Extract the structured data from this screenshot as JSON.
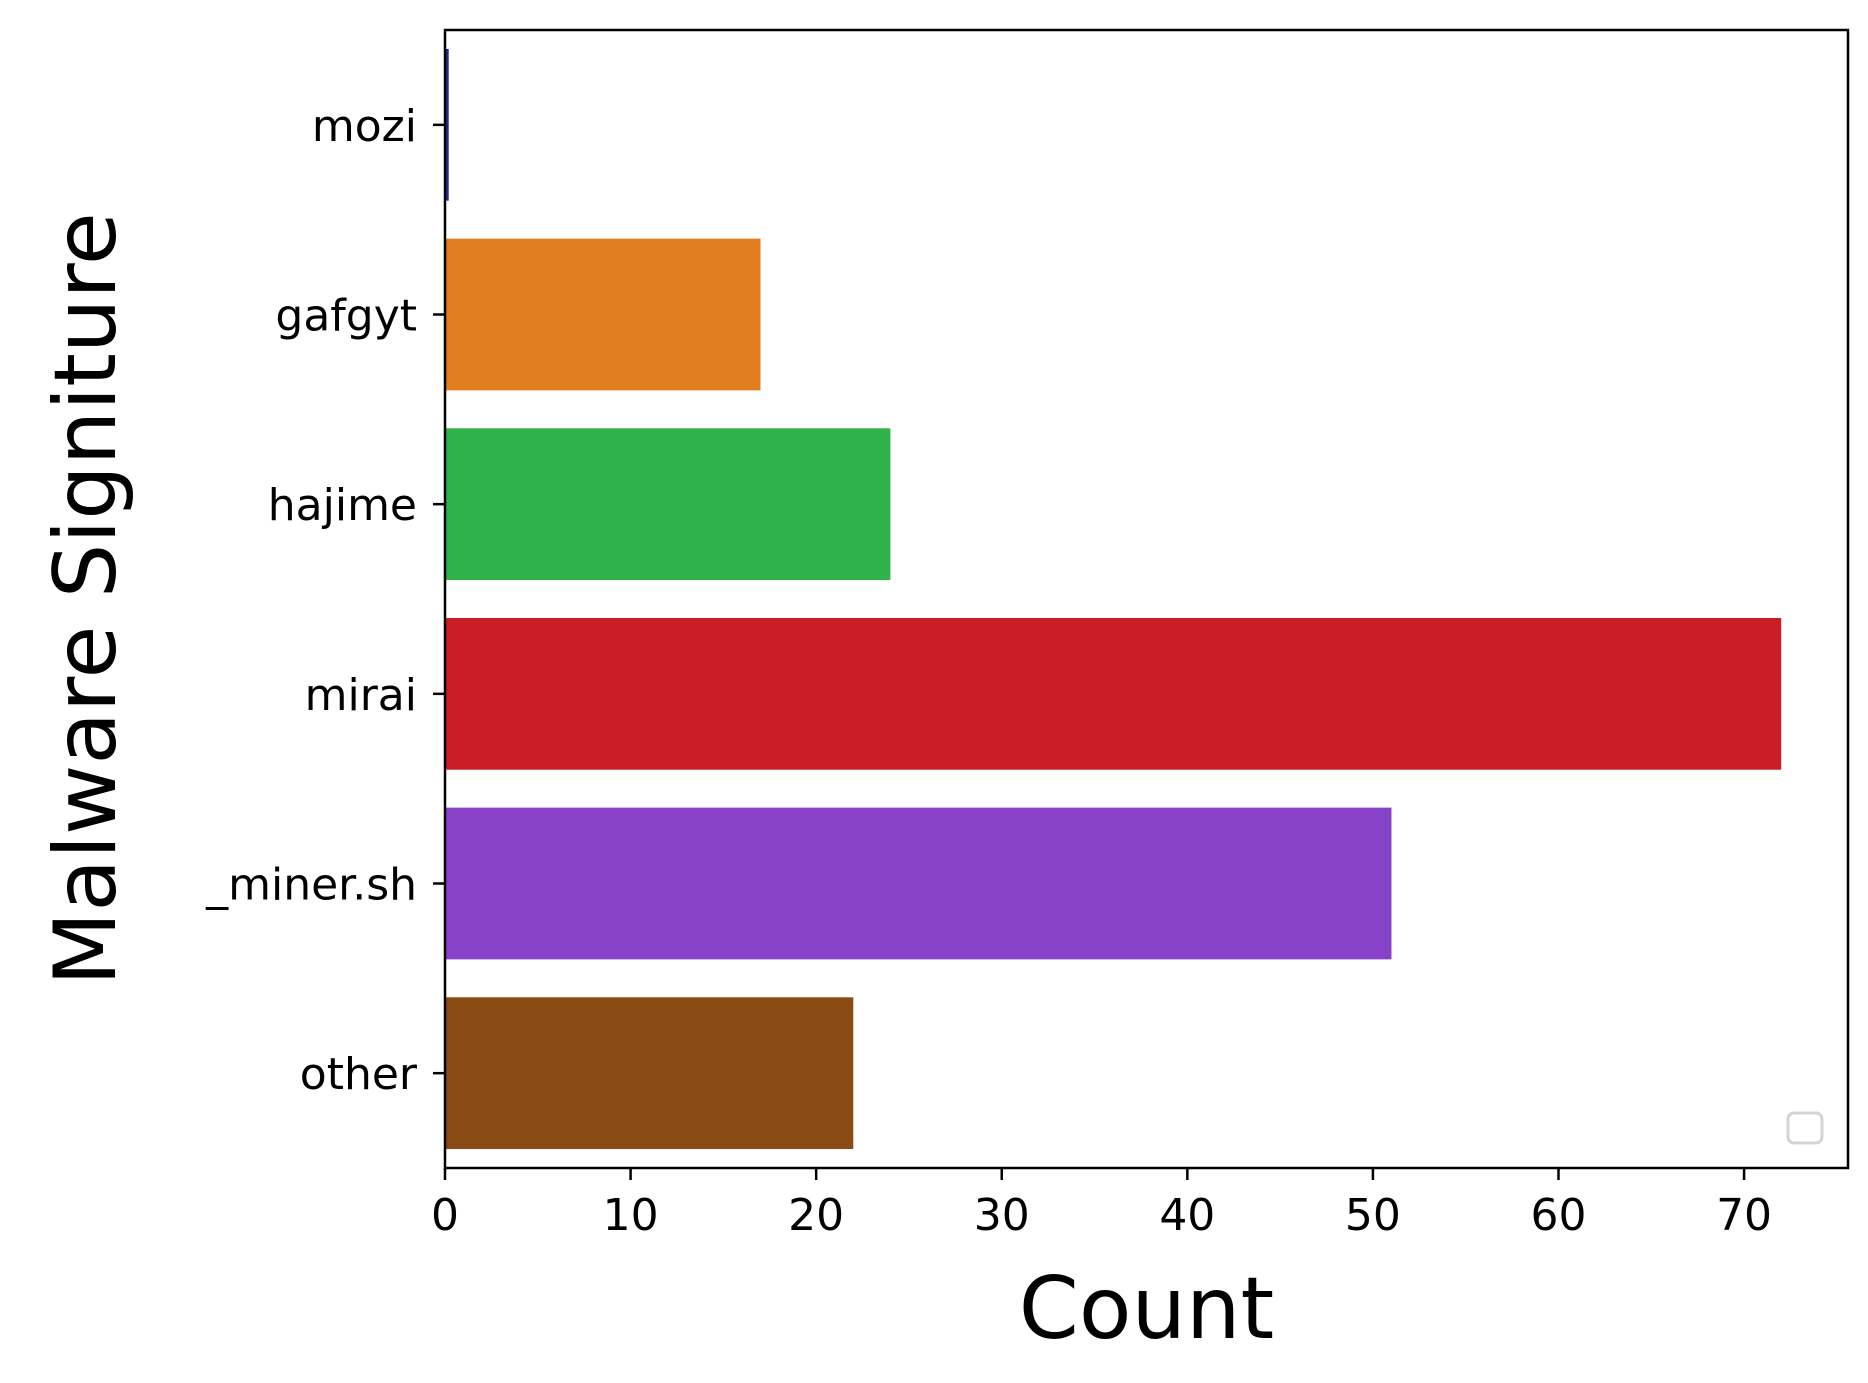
{
  "chart_data": {
    "type": "bar",
    "orientation": "horizontal",
    "title": "",
    "xlabel": "Count",
    "ylabel": "Malware Signiture",
    "xlim": [
      0,
      75.6
    ],
    "xticks": [
      "0",
      "10",
      "20",
      "30",
      "40",
      "50",
      "60",
      "70"
    ],
    "categories": [
      "mozi",
      "gafgyt",
      "hajime",
      "mirai",
      "_miner.sh",
      "other"
    ],
    "values": [
      0.2,
      17,
      24,
      72,
      51,
      22
    ],
    "colors": [
      "#1f2a8a",
      "#e07d1e",
      "#30b24a",
      "#cb1d27",
      "#8841c9",
      "#8a4a14"
    ],
    "grid": false,
    "legend": {
      "placement": "lower-right",
      "entries": []
    }
  }
}
